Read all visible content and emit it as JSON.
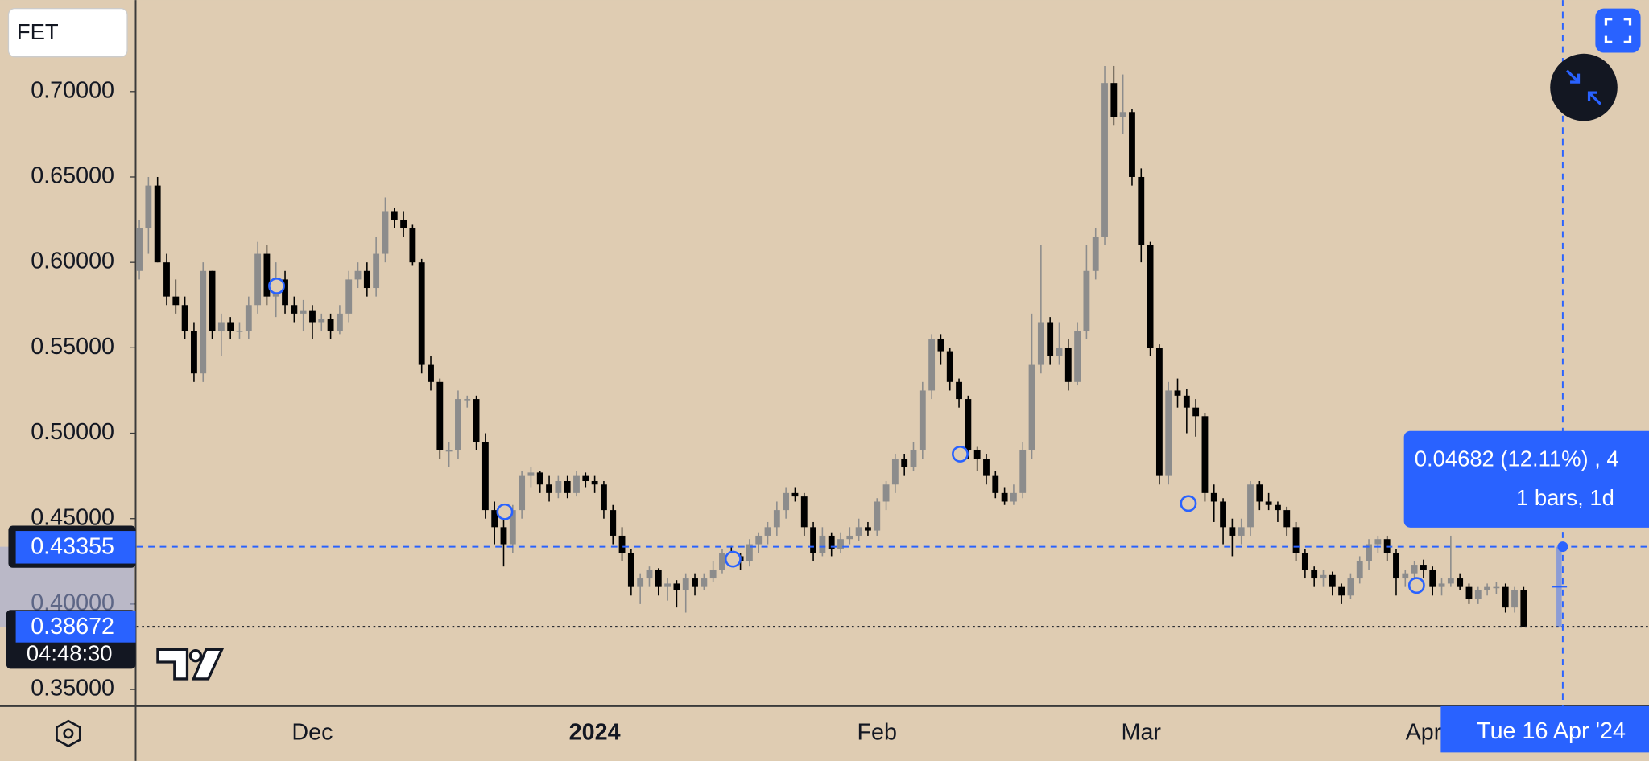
{
  "chart_data": {
    "type": "candlestick",
    "symbol": "FET",
    "up_color": "#8c8c8c",
    "down_color": "#000000",
    "ylim": [
      0.3402,
      0.7535
    ],
    "yticks": [
      {
        "value": 0.35,
        "label": "0.35000"
      },
      {
        "value": 0.4,
        "label": "0.40000"
      },
      {
        "value": 0.45,
        "label": "0.45000"
      },
      {
        "value": 0.5,
        "label": "0.50000"
      },
      {
        "value": 0.55,
        "label": "0.55000"
      },
      {
        "value": 0.6,
        "label": "0.60000"
      },
      {
        "value": 0.65,
        "label": "0.65000"
      },
      {
        "value": 0.7,
        "label": "0.70000"
      }
    ],
    "categories": [
      null,
      null,
      null,
      null,
      null,
      null,
      null,
      null,
      null,
      null,
      null,
      null,
      null,
      null,
      null,
      null,
      null,
      null,
      null,
      "Dec",
      null,
      null,
      null,
      null,
      null,
      null,
      null,
      null,
      null,
      null,
      null,
      null,
      null,
      null,
      null,
      null,
      null,
      null,
      null,
      null,
      null,
      null,
      null,
      null,
      null,
      null,
      null,
      null,
      null,
      null,
      "2024",
      null,
      null,
      null,
      null,
      null,
      null,
      null,
      null,
      null,
      null,
      null,
      null,
      null,
      null,
      null,
      null,
      null,
      null,
      null,
      null,
      null,
      null,
      null,
      null,
      null,
      null,
      null,
      null,
      null,
      null,
      "Feb",
      null,
      null,
      null,
      null,
      null,
      null,
      null,
      null,
      null,
      null,
      null,
      null,
      null,
      null,
      null,
      null,
      null,
      null,
      null,
      null,
      null,
      null,
      null,
      null,
      null,
      null,
      null,
      null,
      "Mar",
      null,
      null,
      null,
      null,
      null,
      null,
      null,
      null,
      null,
      null,
      null,
      null,
      null,
      null,
      null,
      null,
      null,
      null,
      null,
      null,
      null,
      null,
      null,
      null,
      null,
      null,
      null,
      null,
      null,
      null,
      "Apr",
      null,
      null,
      null,
      null,
      null,
      null,
      null,
      null,
      null,
      null,
      null
    ],
    "candles": [
      [
        0.595,
        0.625,
        0.59,
        0.62
      ],
      [
        0.62,
        0.65,
        0.605,
        0.645
      ],
      [
        0.645,
        0.65,
        0.6,
        0.6
      ],
      [
        0.6,
        0.605,
        0.575,
        0.58
      ],
      [
        0.58,
        0.59,
        0.57,
        0.575
      ],
      [
        0.575,
        0.58,
        0.555,
        0.56
      ],
      [
        0.56,
        0.565,
        0.53,
        0.535
      ],
      [
        0.535,
        0.6,
        0.53,
        0.595
      ],
      [
        0.595,
        0.595,
        0.555,
        0.56
      ],
      [
        0.56,
        0.57,
        0.545,
        0.565
      ],
      [
        0.565,
        0.568,
        0.555,
        0.56
      ],
      [
        0.56,
        0.565,
        0.555,
        0.56
      ],
      [
        0.56,
        0.58,
        0.555,
        0.575
      ],
      [
        0.575,
        0.612,
        0.57,
        0.605
      ],
      [
        0.605,
        0.61,
        0.575,
        0.58
      ],
      [
        0.58,
        0.6,
        0.568,
        0.59
      ],
      [
        0.59,
        0.595,
        0.57,
        0.575
      ],
      [
        0.575,
        0.58,
        0.565,
        0.57
      ],
      [
        0.57,
        0.578,
        0.56,
        0.572
      ],
      [
        0.572,
        0.575,
        0.555,
        0.565
      ],
      [
        0.565,
        0.57,
        0.56,
        0.567
      ],
      [
        0.567,
        0.57,
        0.555,
        0.56
      ],
      [
        0.56,
        0.575,
        0.558,
        0.57
      ],
      [
        0.57,
        0.595,
        0.565,
        0.59
      ],
      [
        0.59,
        0.6,
        0.585,
        0.595
      ],
      [
        0.595,
        0.6,
        0.58,
        0.585
      ],
      [
        0.585,
        0.615,
        0.58,
        0.605
      ],
      [
        0.605,
        0.638,
        0.6,
        0.63
      ],
      [
        0.63,
        0.632,
        0.62,
        0.625
      ],
      [
        0.625,
        0.63,
        0.615,
        0.62
      ],
      [
        0.62,
        0.622,
        0.598,
        0.6
      ],
      [
        0.6,
        0.602,
        0.535,
        0.54
      ],
      [
        0.54,
        0.545,
        0.525,
        0.53
      ],
      [
        0.53,
        0.532,
        0.485,
        0.49
      ],
      [
        0.49,
        0.495,
        0.48,
        0.49
      ],
      [
        0.49,
        0.525,
        0.485,
        0.52
      ],
      [
        0.52,
        0.522,
        0.515,
        0.52
      ],
      [
        0.52,
        0.522,
        0.49,
        0.495
      ],
      [
        0.495,
        0.5,
        0.45,
        0.455
      ],
      [
        0.455,
        0.46,
        0.435,
        0.445
      ],
      [
        0.445,
        0.45,
        0.422,
        0.435
      ],
      [
        0.435,
        0.458,
        0.43,
        0.455
      ],
      [
        0.455,
        0.478,
        0.45,
        0.475
      ],
      [
        0.475,
        0.48,
        0.468,
        0.477
      ],
      [
        0.477,
        0.478,
        0.465,
        0.47
      ],
      [
        0.47,
        0.475,
        0.46,
        0.465
      ],
      [
        0.465,
        0.475,
        0.462,
        0.472
      ],
      [
        0.472,
        0.475,
        0.462,
        0.465
      ],
      [
        0.465,
        0.478,
        0.463,
        0.475
      ],
      [
        0.475,
        0.477,
        0.468,
        0.472
      ],
      [
        0.472,
        0.475,
        0.465,
        0.47
      ],
      [
        0.47,
        0.472,
        0.45,
        0.455
      ],
      [
        0.455,
        0.458,
        0.435,
        0.44
      ],
      [
        0.44,
        0.445,
        0.425,
        0.43
      ],
      [
        0.43,
        0.432,
        0.405,
        0.41
      ],
      [
        0.41,
        0.418,
        0.4,
        0.415
      ],
      [
        0.415,
        0.422,
        0.41,
        0.42
      ],
      [
        0.42,
        0.421,
        0.405,
        0.41
      ],
      [
        0.41,
        0.415,
        0.402,
        0.412
      ],
      [
        0.412,
        0.414,
        0.398,
        0.408
      ],
      [
        0.408,
        0.418,
        0.395,
        0.415
      ],
      [
        0.415,
        0.418,
        0.405,
        0.41
      ],
      [
        0.41,
        0.418,
        0.408,
        0.415
      ],
      [
        0.415,
        0.425,
        0.413,
        0.42
      ],
      [
        0.42,
        0.432,
        0.418,
        0.43
      ],
      [
        0.43,
        0.434,
        0.424,
        0.428
      ],
      [
        0.428,
        0.43,
        0.42,
        0.425
      ],
      [
        0.425,
        0.438,
        0.422,
        0.435
      ],
      [
        0.435,
        0.442,
        0.43,
        0.44
      ],
      [
        0.44,
        0.448,
        0.435,
        0.445
      ],
      [
        0.445,
        0.46,
        0.44,
        0.455
      ],
      [
        0.455,
        0.468,
        0.45,
        0.465
      ],
      [
        0.465,
        0.468,
        0.46,
        0.463
      ],
      [
        0.463,
        0.465,
        0.44,
        0.445
      ],
      [
        0.445,
        0.448,
        0.425,
        0.43
      ],
      [
        0.43,
        0.445,
        0.428,
        0.44
      ],
      [
        0.44,
        0.442,
        0.428,
        0.432
      ],
      [
        0.432,
        0.442,
        0.43,
        0.438
      ],
      [
        0.438,
        0.445,
        0.435,
        0.44
      ],
      [
        0.44,
        0.45,
        0.437,
        0.445
      ],
      [
        0.445,
        0.448,
        0.44,
        0.443
      ],
      [
        0.443,
        0.462,
        0.44,
        0.46
      ],
      [
        0.46,
        0.472,
        0.455,
        0.47
      ],
      [
        0.47,
        0.488,
        0.465,
        0.485
      ],
      [
        0.485,
        0.488,
        0.475,
        0.48
      ],
      [
        0.48,
        0.495,
        0.478,
        0.49
      ],
      [
        0.49,
        0.53,
        0.485,
        0.525
      ],
      [
        0.525,
        0.558,
        0.52,
        0.555
      ],
      [
        0.555,
        0.558,
        0.54,
        0.548
      ],
      [
        0.548,
        0.55,
        0.525,
        0.53
      ],
      [
        0.53,
        0.532,
        0.515,
        0.52
      ],
      [
        0.52,
        0.522,
        0.485,
        0.49
      ],
      [
        0.49,
        0.492,
        0.478,
        0.485
      ],
      [
        0.485,
        0.488,
        0.47,
        0.475
      ],
      [
        0.475,
        0.478,
        0.462,
        0.465
      ],
      [
        0.465,
        0.468,
        0.458,
        0.46
      ],
      [
        0.46,
        0.47,
        0.458,
        0.465
      ],
      [
        0.465,
        0.495,
        0.462,
        0.49
      ],
      [
        0.49,
        0.57,
        0.485,
        0.54
      ],
      [
        0.54,
        0.61,
        0.535,
        0.565
      ],
      [
        0.565,
        0.568,
        0.54,
        0.545
      ],
      [
        0.545,
        0.565,
        0.54,
        0.55
      ],
      [
        0.55,
        0.555,
        0.525,
        0.53
      ],
      [
        0.53,
        0.565,
        0.528,
        0.56
      ],
      [
        0.56,
        0.61,
        0.555,
        0.595
      ],
      [
        0.595,
        0.62,
        0.59,
        0.615
      ],
      [
        0.615,
        0.715,
        0.61,
        0.705
      ],
      [
        0.705,
        0.715,
        0.68,
        0.685
      ],
      [
        0.685,
        0.71,
        0.675,
        0.688
      ],
      [
        0.688,
        0.69,
        0.645,
        0.65
      ],
      [
        0.65,
        0.655,
        0.6,
        0.61
      ],
      [
        0.61,
        0.612,
        0.545,
        0.55
      ],
      [
        0.55,
        0.552,
        0.47,
        0.475
      ],
      [
        0.475,
        0.53,
        0.47,
        0.525
      ],
      [
        0.525,
        0.532,
        0.515,
        0.522
      ],
      [
        0.522,
        0.526,
        0.5,
        0.515
      ],
      [
        0.515,
        0.52,
        0.498,
        0.51
      ],
      [
        0.51,
        0.512,
        0.46,
        0.465
      ],
      [
        0.465,
        0.47,
        0.448,
        0.46
      ],
      [
        0.46,
        0.462,
        0.435,
        0.445
      ],
      [
        0.445,
        0.45,
        0.428,
        0.44
      ],
      [
        0.44,
        0.45,
        0.435,
        0.445
      ],
      [
        0.445,
        0.472,
        0.44,
        0.47
      ],
      [
        0.47,
        0.472,
        0.455,
        0.46
      ],
      [
        0.46,
        0.465,
        0.455,
        0.458
      ],
      [
        0.458,
        0.46,
        0.448,
        0.455
      ],
      [
        0.455,
        0.457,
        0.44,
        0.445
      ],
      [
        0.445,
        0.448,
        0.425,
        0.43
      ],
      [
        0.43,
        0.432,
        0.415,
        0.42
      ],
      [
        0.42,
        0.422,
        0.41,
        0.415
      ],
      [
        0.415,
        0.42,
        0.41,
        0.417
      ],
      [
        0.417,
        0.419,
        0.405,
        0.41
      ],
      [
        0.41,
        0.412,
        0.4,
        0.405
      ],
      [
        0.405,
        0.418,
        0.403,
        0.415
      ],
      [
        0.415,
        0.428,
        0.412,
        0.425
      ],
      [
        0.425,
        0.438,
        0.42,
        0.435
      ],
      [
        0.435,
        0.44,
        0.43,
        0.438
      ],
      [
        0.438,
        0.44,
        0.425,
        0.43
      ],
      [
        0.43,
        0.432,
        0.405,
        0.415
      ],
      [
        0.415,
        0.42,
        0.41,
        0.418
      ],
      [
        0.418,
        0.425,
        0.415,
        0.423
      ],
      [
        0.423,
        0.426,
        0.415,
        0.42
      ],
      [
        0.42,
        0.422,
        0.405,
        0.41
      ],
      [
        0.41,
        0.415,
        0.405,
        0.412
      ],
      [
        0.412,
        0.44,
        0.41,
        0.415
      ],
      [
        0.415,
        0.418,
        0.408,
        0.41
      ],
      [
        0.41,
        0.412,
        0.4,
        0.403
      ],
      [
        0.403,
        0.41,
        0.4,
        0.408
      ],
      [
        0.408,
        0.412,
        0.405,
        0.41
      ],
      [
        0.41,
        0.413,
        0.406,
        0.41
      ],
      [
        0.41,
        0.412,
        0.395,
        0.398
      ],
      [
        0.398,
        0.41,
        0.395,
        0.408
      ],
      [
        0.408,
        0.41,
        0.38672,
        0.38672
      ]
    ],
    "crosshair": {
      "price": 0.43355,
      "date": "Tue 16 Apr '24"
    },
    "last_price": 0.38672,
    "countdown": "04:48:30",
    "measure": {
      "change": "0.04682 (12.11%) , 4",
      "bars": "1 bars, 1d"
    }
  }
}
